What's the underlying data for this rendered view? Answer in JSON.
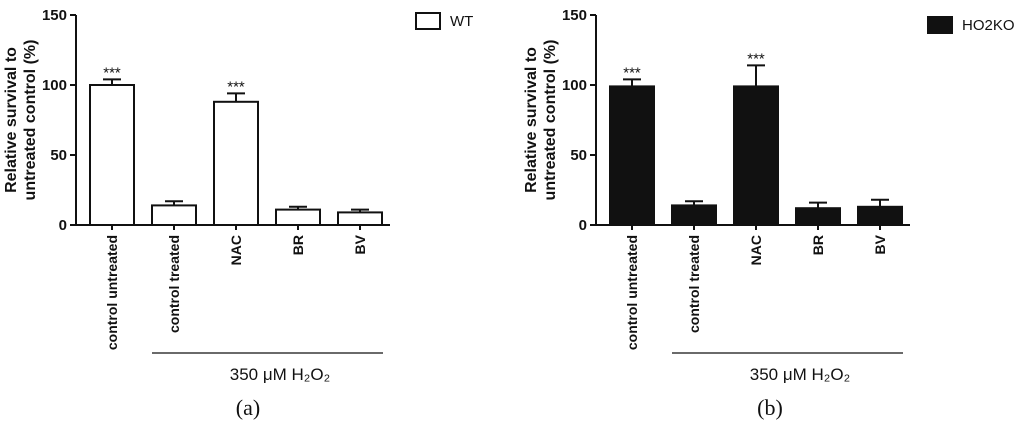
{
  "chart_data": [
    {
      "type": "bar",
      "panel_label": "(a)",
      "legend": "WT",
      "bar_color": "#ffffff",
      "ylabel_lines": [
        "Relative survival to",
        "untreated control (%)"
      ],
      "ylim": [
        0,
        150
      ],
      "yticks": [
        "0",
        "50",
        "100",
        "150"
      ],
      "categories": [
        "control untreated",
        "control treated",
        "NAC",
        "BR",
        "BV"
      ],
      "values": [
        100,
        14,
        88,
        11,
        9
      ],
      "errors": [
        4,
        3,
        6,
        2,
        2
      ],
      "annotations": [
        "***",
        "",
        "***",
        "",
        ""
      ],
      "treatment_label": "350 μM H₂O₂"
    },
    {
      "type": "bar",
      "panel_label": "(b)",
      "legend": "HO2KO",
      "bar_color": "#111111",
      "ylabel_lines": [
        "Relative survival to",
        "untreated control (%)"
      ],
      "ylim": [
        0,
        150
      ],
      "yticks": [
        "0",
        "50",
        "100",
        "150"
      ],
      "categories": [
        "control untreated",
        "control treated",
        "NAC",
        "BR",
        "BV"
      ],
      "values": [
        99,
        14,
        99,
        12,
        13
      ],
      "errors": [
        5,
        3,
        15,
        4,
        5
      ],
      "annotations": [
        "***",
        "",
        "***",
        "",
        ""
      ],
      "treatment_label": "350 μM H₂O₂"
    }
  ]
}
